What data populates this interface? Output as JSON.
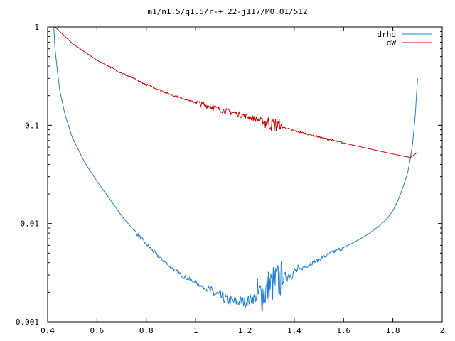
{
  "chart_data": {
    "type": "line",
    "title": "m1/n1.5/q1.5/r-+.22-j117/M0.01/512",
    "xlabel": "",
    "ylabel": "",
    "xlim": [
      0.4,
      2
    ],
    "ylim": [
      0.001,
      1
    ],
    "y_scale": "log",
    "x_ticks": [
      "0.4",
      "0.6",
      "0.8",
      "1",
      "1.2",
      "1.4",
      "1.6",
      "1.8",
      "2"
    ],
    "x_tick_values": [
      0.4,
      0.6,
      0.8,
      1.0,
      1.2,
      1.4,
      1.6,
      1.8,
      2.0
    ],
    "y_ticks": [
      "1",
      "0.1",
      "0.01",
      "0.001"
    ],
    "y_tick_values": [
      1,
      0.1,
      0.01,
      0.001
    ],
    "grid": false,
    "legend_position": "top-right",
    "series": [
      {
        "name": "drho",
        "color": "#1f7fd6",
        "x": [
          0.425,
          0.43,
          0.44,
          0.45,
          0.47,
          0.5,
          0.55,
          0.6,
          0.65,
          0.7,
          0.75,
          0.8,
          0.85,
          0.9,
          0.95,
          1.0,
          1.05,
          1.1,
          1.15,
          1.2,
          1.25,
          1.28,
          1.3,
          1.32,
          1.35,
          1.4,
          1.45,
          1.5,
          1.55,
          1.6,
          1.65,
          1.7,
          1.75,
          1.78,
          1.8,
          1.82,
          1.84,
          1.86,
          1.87,
          1.88,
          1.89,
          1.9
        ],
        "y": [
          1.0,
          0.6,
          0.35,
          0.22,
          0.13,
          0.075,
          0.042,
          0.027,
          0.018,
          0.012,
          0.0085,
          0.0062,
          0.0046,
          0.0036,
          0.0029,
          0.0025,
          0.0021,
          0.0018,
          0.0016,
          0.0016,
          0.0018,
          0.002,
          0.0023,
          0.0025,
          0.0027,
          0.0032,
          0.0037,
          0.0043,
          0.005,
          0.0057,
          0.0066,
          0.0078,
          0.0097,
          0.0115,
          0.0135,
          0.017,
          0.023,
          0.033,
          0.045,
          0.065,
          0.12,
          0.3
        ]
      },
      {
        "name": "dW",
        "color": "#cc0000",
        "x": [
          0.43,
          0.5,
          0.6,
          0.7,
          0.8,
          0.9,
          1.0,
          1.1,
          1.2,
          1.3,
          1.4,
          1.5,
          1.6,
          1.7,
          1.8,
          1.87,
          1.9
        ],
        "y": [
          1.0,
          0.68,
          0.46,
          0.34,
          0.26,
          0.205,
          0.17,
          0.145,
          0.125,
          0.105,
          0.088,
          0.076,
          0.066,
          0.058,
          0.051,
          0.047,
          0.053
        ]
      }
    ]
  }
}
